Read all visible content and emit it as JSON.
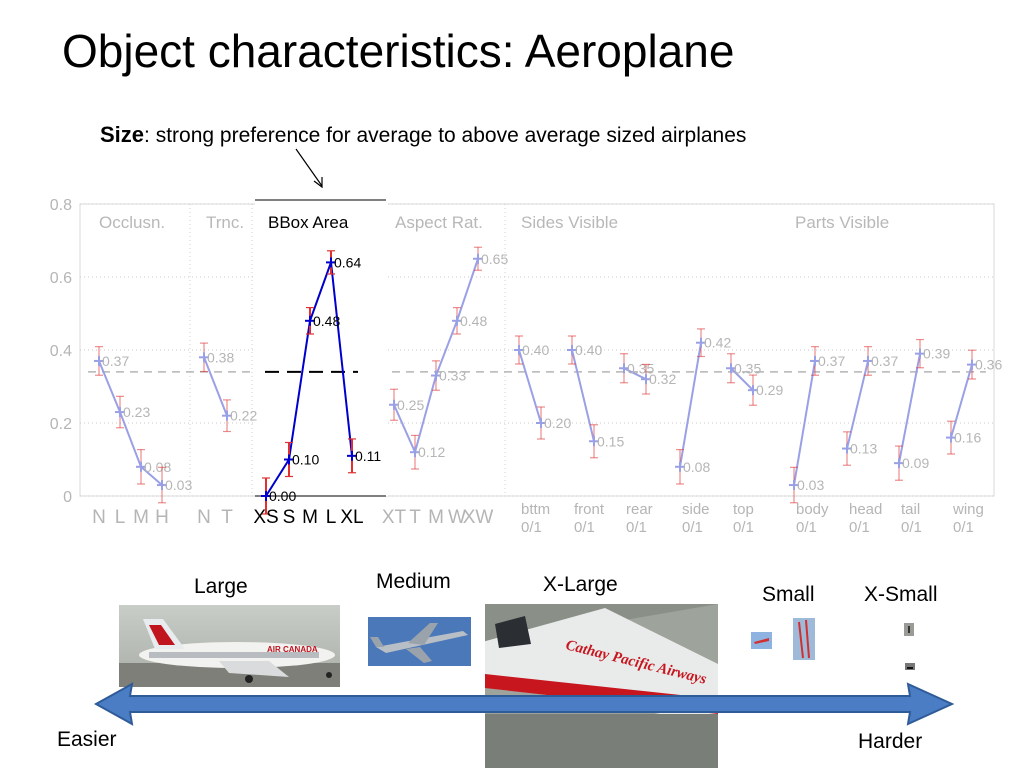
{
  "slide": {
    "title": "Object characteristics: Aeroplane",
    "subtitle_bold": "Size",
    "subtitle_rest": ": strong preference for average to above average sized airplanes"
  },
  "chart_data": {
    "type": "line",
    "ylim": [
      0,
      0.8
    ],
    "yticks": [
      "0",
      "0.2",
      "0.4",
      "0.6",
      "0.8"
    ],
    "reference_line": 0.34,
    "highlighted_group": "BBox Area",
    "groups": [
      {
        "name": "Occlusn.",
        "categories": [
          "N",
          "L",
          "M",
          "H"
        ],
        "values": [
          0.37,
          0.23,
          0.08,
          0.03
        ],
        "labels": [
          "0.37",
          "0.23",
          "0.08",
          "0.03"
        ]
      },
      {
        "name": "Trnc.",
        "categories": [
          "N",
          "T"
        ],
        "values": [
          0.38,
          0.22
        ],
        "labels": [
          "0.38",
          "0.22"
        ]
      },
      {
        "name": "BBox Area",
        "categories": [
          "XS",
          "S",
          "M",
          "L",
          "XL"
        ],
        "values": [
          0.0,
          0.1,
          0.48,
          0.64,
          0.11
        ],
        "labels": [
          "0.00",
          "0.10",
          "0.48",
          "0.64",
          "0.11"
        ]
      },
      {
        "name": "Aspect Rat.",
        "categories": [
          "XT",
          "T",
          "M",
          "W",
          "XW"
        ],
        "values": [
          0.25,
          0.12,
          0.33,
          0.48,
          0.65
        ],
        "labels": [
          "0.25",
          "0.12",
          "0.33",
          "0.48",
          "0.65"
        ]
      },
      {
        "name": "Sides Visible",
        "pairs": [
          {
            "name": "bttm",
            "sub": "0/1",
            "values": [
              0.4,
              0.2
            ],
            "labels": [
              "0.40",
              "0.20"
            ]
          },
          {
            "name": "front",
            "sub": "0/1",
            "values": [
              0.4,
              0.15
            ],
            "labels": [
              "0.40",
              "0.15"
            ]
          },
          {
            "name": "rear",
            "sub": "0/1",
            "values": [
              0.35,
              0.32
            ],
            "labels": [
              "0.35",
              "0.32"
            ]
          },
          {
            "name": "side",
            "sub": "0/1",
            "values": [
              0.08,
              0.42
            ],
            "labels": [
              "0.08",
              "0.42"
            ]
          },
          {
            "name": "top",
            "sub": "0/1",
            "values": [
              0.35,
              0.29
            ],
            "labels": [
              "0.35",
              "0.29"
            ]
          }
        ]
      },
      {
        "name": "Parts Visible",
        "pairs": [
          {
            "name": "body",
            "sub": "0/1",
            "values": [
              0.03,
              0.37
            ],
            "labels": [
              "0.03",
              "0.37"
            ]
          },
          {
            "name": "head",
            "sub": "0/1",
            "values": [
              0.13,
              0.37
            ],
            "labels": [
              "0.13",
              "0.37"
            ]
          },
          {
            "name": "tail",
            "sub": "0/1",
            "values": [
              0.09,
              0.39
            ],
            "labels": [
              "0.09",
              "0.39"
            ]
          },
          {
            "name": "wing",
            "sub": "0/1",
            "values": [
              0.16,
              0.36
            ],
            "labels": [
              "0.16",
              "0.36"
            ]
          }
        ]
      }
    ]
  },
  "examples": {
    "large": "Large",
    "medium": "Medium",
    "xlarge": "X-Large",
    "small": "Small",
    "xsmall": "X-Small",
    "xlarge_livery_text": "Cathay Pacific Airways",
    "large_livery_text": "AIR CANADA"
  },
  "scale": {
    "easier": "Easier",
    "harder": "Harder"
  },
  "colors": {
    "faded": "#9aa0e6",
    "highlight": "#0000cc",
    "error": "#e03030"
  }
}
